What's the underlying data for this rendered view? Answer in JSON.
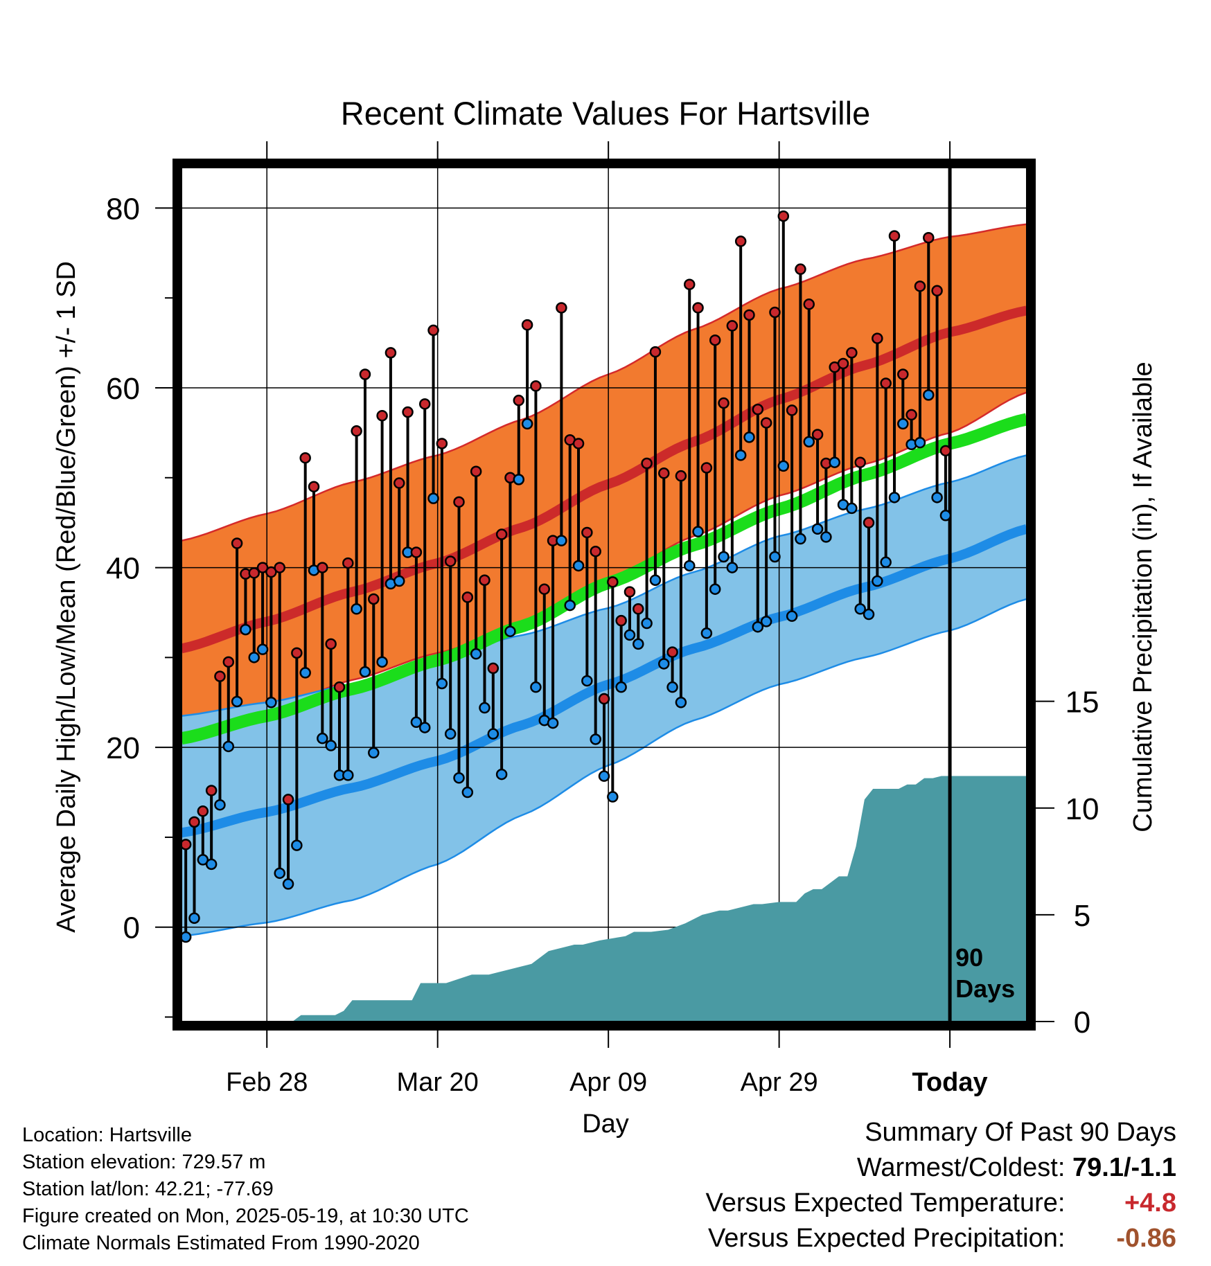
{
  "chart_data": {
    "type": "line",
    "title": "Recent Climate Values For Hartsville",
    "xlabel": "Day",
    "ylabel": "Average Daily High/Low/Mean (Red/Blue/Green) +/- 1 SD",
    "y2label": "Cumulative Precipitation (in), If Available",
    "xlim_days": [
      -90,
      9
    ],
    "ylim": [
      -10.5,
      84.5
    ],
    "y2lim": [
      0,
      40
    ],
    "x_ticks": [
      "Feb 28",
      "Mar 20",
      "Apr 09",
      "Apr 29",
      "Today"
    ],
    "x_tick_days": [
      -80,
      -60,
      -40,
      -20,
      0
    ],
    "y_ticks": [
      0,
      20,
      40,
      60,
      80
    ],
    "y2_ticks": [
      0,
      5,
      10,
      15
    ],
    "grid": true,
    "today_marker": {
      "label_line1": "90",
      "label_line2": "Days"
    },
    "normals": {
      "days": [
        -90,
        -80,
        -70,
        -60,
        -50,
        -40,
        -30,
        -20,
        -10,
        0,
        9
      ],
      "high_mean": [
        31.0,
        34.0,
        37.3,
        40.5,
        44.5,
        49.3,
        54.0,
        58.7,
        62.5,
        66.2,
        68.6
      ],
      "high_upper": [
        43.0,
        46.0,
        49.5,
        52.5,
        56.5,
        61.5,
        66.5,
        71.0,
        74.3,
        76.8,
        78.2
      ],
      "high_lower": [
        21.5,
        24.0,
        27.5,
        30.5,
        33.5,
        38.5,
        43.5,
        48.0,
        51.5,
        55.0,
        59.5
      ],
      "low_mean": [
        10.5,
        12.8,
        15.5,
        18.5,
        22.5,
        27.0,
        31.0,
        34.5,
        37.8,
        41.0,
        44.3
      ],
      "low_upper": [
        23.5,
        25.0,
        27.0,
        30.0,
        32.5,
        35.5,
        39.5,
        43.5,
        46.5,
        49.5,
        52.5
      ],
      "low_lower": [
        -1.0,
        0.5,
        3.0,
        7.0,
        12.5,
        18.0,
        23.0,
        27.0,
        30.0,
        33.0,
        36.5
      ],
      "mean_mean": [
        21.0,
        23.5,
        26.5,
        29.7,
        33.5,
        38.3,
        42.5,
        46.5,
        50.3,
        53.8,
        56.5
      ]
    },
    "series": [
      {
        "name": "High",
        "color": "#c8282d",
        "values": [
          9.2,
          11.7,
          12.9,
          15.2,
          27.9,
          29.5,
          42.7,
          39.3,
          39.4,
          40.0,
          39.5,
          40.0,
          14.2,
          30.5,
          52.2,
          49.0,
          40.0,
          31.5,
          26.7,
          40.5,
          55.2,
          61.5,
          36.5,
          56.9,
          63.9,
          49.4,
          57.3,
          41.7,
          58.2,
          66.4,
          53.8,
          40.7,
          47.3,
          36.7,
          50.7,
          38.6,
          28.8,
          43.7,
          50.0,
          58.6,
          67.0,
          60.2,
          37.6,
          43.0,
          68.9,
          54.2,
          53.8,
          43.9,
          41.8,
          25.4,
          38.4,
          34.1,
          37.3,
          35.4,
          51.6,
          64.0,
          50.5,
          30.6,
          50.2,
          71.5,
          68.9,
          51.1,
          65.3,
          58.3,
          66.9,
          76.3,
          68.1,
          57.6,
          56.1,
          68.4,
          79.1,
          57.5,
          73.2,
          69.3,
          54.8,
          51.6,
          62.3,
          62.7,
          63.9,
          51.7,
          45.0,
          65.5,
          60.5,
          76.9,
          61.5,
          57.0,
          71.3,
          76.7,
          70.8,
          53.0
        ]
      },
      {
        "name": "Low",
        "color": "#1e8ce6",
        "values": [
          -1.1,
          1.0,
          7.5,
          7.0,
          13.6,
          20.1,
          25.1,
          33.1,
          30.0,
          30.9,
          25.0,
          6.0,
          4.8,
          9.1,
          28.3,
          39.7,
          21.0,
          20.2,
          16.9,
          16.9,
          35.4,
          28.4,
          19.4,
          29.5,
          38.2,
          38.5,
          41.7,
          22.8,
          22.2,
          47.7,
          27.1,
          21.5,
          16.6,
          15.0,
          30.4,
          24.4,
          21.5,
          17.0,
          32.9,
          49.8,
          56.0,
          26.7,
          23.0,
          22.7,
          43.0,
          35.8,
          40.2,
          27.4,
          20.9,
          16.8,
          14.5,
          26.7,
          32.5,
          31.5,
          33.8,
          38.6,
          29.3,
          26.7,
          25.0,
          40.2,
          44.0,
          32.7,
          37.6,
          41.2,
          40.0,
          52.5,
          54.5,
          33.4,
          34.0,
          41.2,
          51.3,
          34.6,
          43.2,
          54.0,
          44.3,
          43.4,
          51.7,
          47.0,
          46.6,
          35.4,
          34.8,
          38.5,
          40.6,
          47.8,
          56.0,
          53.7,
          53.9,
          59.2,
          47.8,
          45.8
        ]
      },
      {
        "name": "Cumulative Precipitation",
        "color": "#4a9aa3",
        "days": [
          -90,
          -77,
          -76,
          -74,
          -72,
          -71,
          -70,
          -66,
          -65,
          -64,
          -63,
          -62,
          -59,
          -56,
          -55,
          -54,
          -53,
          -50,
          -49,
          -48,
          -47,
          -45,
          -44,
          -43,
          -41,
          -38,
          -37,
          -36,
          -35,
          -33,
          -31,
          -29,
          -27,
          -26,
          -23,
          -22,
          -20,
          -19,
          -18,
          -17,
          -16,
          -15,
          -14,
          -13,
          -12,
          -11,
          -10,
          -9,
          -8,
          -7,
          -6,
          -5,
          -4,
          -3,
          -2,
          -1,
          0,
          9
        ],
        "values": [
          0,
          0,
          0.3,
          0.3,
          0.3,
          0.5,
          1.0,
          1.0,
          1.0,
          1.0,
          1.0,
          1.8,
          1.8,
          2.2,
          2.2,
          2.2,
          2.3,
          2.6,
          2.7,
          3.0,
          3.3,
          3.5,
          3.6,
          3.6,
          3.8,
          4.0,
          4.2,
          4.2,
          4.2,
          4.3,
          4.6,
          5.0,
          5.2,
          5.2,
          5.5,
          5.5,
          5.6,
          5.6,
          5.6,
          6.0,
          6.2,
          6.2,
          6.5,
          6.8,
          6.8,
          8.2,
          10.4,
          10.9,
          10.9,
          10.9,
          10.9,
          11.1,
          11.1,
          11.4,
          11.4,
          11.5,
          11.5,
          11.5
        ]
      }
    ]
  },
  "info": {
    "location": "Location: Hartsville",
    "elevation": "Station elevation: 729.57 m",
    "latlon": "Station lat/lon: 42.21; -77.69",
    "created": "Figure created on Mon, 2025-05-19, at 10:30 UTC",
    "normals": "Climate Normals Estimated From 1990-2020"
  },
  "summary": {
    "heading": "Summary Of Past 90 Days",
    "warmest_label": "Warmest/Coldest:",
    "warmest_value": "79.1/-1.1",
    "temp_label": "Versus Expected Temperature:",
    "temp_value": "+4.8",
    "precip_label": "Versus Expected Precipitation:",
    "precip_value": "-0.86"
  }
}
